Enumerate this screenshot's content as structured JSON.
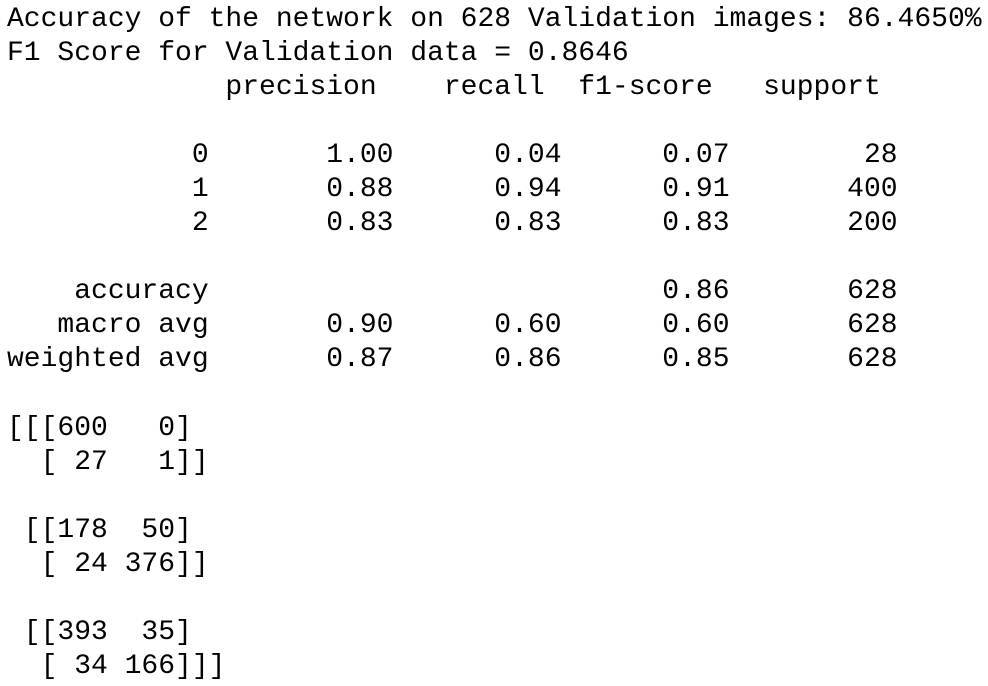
{
  "output": {
    "lines": [
      "Accuracy of the network on 628 Validation images: 86.4650%",
      "F1 Score for Validation data = 0.8646",
      "             precision    recall  f1-score   support",
      "",
      "           0       1.00      0.04      0.07        28",
      "           1       0.88      0.94      0.91       400",
      "           2       0.83      0.83      0.83       200",
      "",
      "    accuracy                           0.86       628",
      "   macro avg       0.90      0.60      0.60       628",
      "weighted avg       0.87      0.86      0.85       628",
      "",
      "[[[600   0]",
      "  [ 27   1]]",
      "",
      " [[178  50]",
      "  [ 24 376]]",
      "",
      " [[393  35]",
      "  [ 34 166]]]"
    ]
  }
}
